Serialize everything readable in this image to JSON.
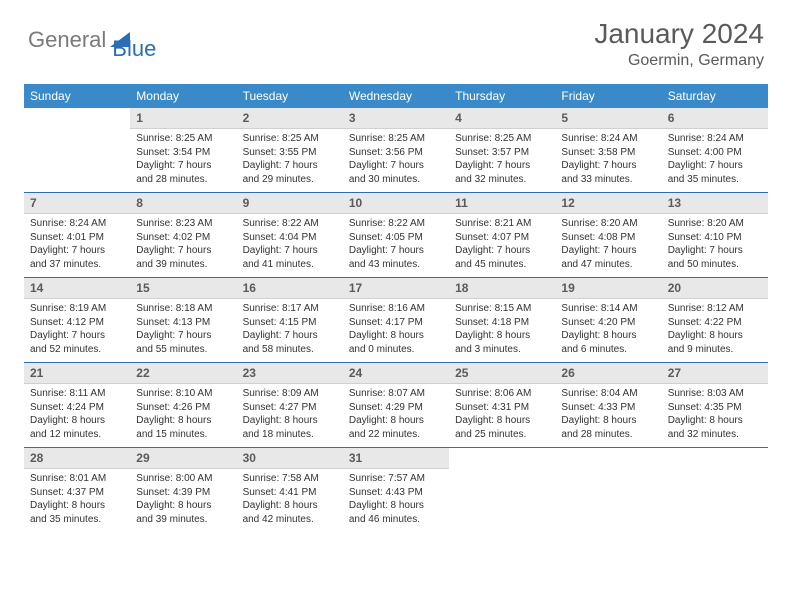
{
  "logo": {
    "text_gray": "General",
    "text_blue": "Blue"
  },
  "title": "January 2024",
  "location": "Goermin, Germany",
  "colors": {
    "header_bg": "#3a8ac9",
    "header_text": "#ffffff",
    "daynum_bg": "#e8e8e8",
    "daynum_text": "#5a5a5a",
    "row_divider": "#2a6fb5",
    "body_text": "#333333",
    "title_text": "#5a5a5a",
    "page_bg": "#ffffff"
  },
  "typography": {
    "title_fontsize": 28,
    "location_fontsize": 16,
    "dayheader_fontsize": 12,
    "daynum_fontsize": 12,
    "body_fontsize": 10,
    "font_family": "Arial"
  },
  "day_headers": [
    "Sunday",
    "Monday",
    "Tuesday",
    "Wednesday",
    "Thursday",
    "Friday",
    "Saturday"
  ],
  "weeks": [
    [
      {
        "n": "",
        "sr": "",
        "ss": "",
        "d1": "",
        "d2": "",
        "empty": true
      },
      {
        "n": "1",
        "sr": "Sunrise: 8:25 AM",
        "ss": "Sunset: 3:54 PM",
        "d1": "Daylight: 7 hours",
        "d2": "and 28 minutes."
      },
      {
        "n": "2",
        "sr": "Sunrise: 8:25 AM",
        "ss": "Sunset: 3:55 PM",
        "d1": "Daylight: 7 hours",
        "d2": "and 29 minutes."
      },
      {
        "n": "3",
        "sr": "Sunrise: 8:25 AM",
        "ss": "Sunset: 3:56 PM",
        "d1": "Daylight: 7 hours",
        "d2": "and 30 minutes."
      },
      {
        "n": "4",
        "sr": "Sunrise: 8:25 AM",
        "ss": "Sunset: 3:57 PM",
        "d1": "Daylight: 7 hours",
        "d2": "and 32 minutes."
      },
      {
        "n": "5",
        "sr": "Sunrise: 8:24 AM",
        "ss": "Sunset: 3:58 PM",
        "d1": "Daylight: 7 hours",
        "d2": "and 33 minutes."
      },
      {
        "n": "6",
        "sr": "Sunrise: 8:24 AM",
        "ss": "Sunset: 4:00 PM",
        "d1": "Daylight: 7 hours",
        "d2": "and 35 minutes."
      }
    ],
    [
      {
        "n": "7",
        "sr": "Sunrise: 8:24 AM",
        "ss": "Sunset: 4:01 PM",
        "d1": "Daylight: 7 hours",
        "d2": "and 37 minutes."
      },
      {
        "n": "8",
        "sr": "Sunrise: 8:23 AM",
        "ss": "Sunset: 4:02 PM",
        "d1": "Daylight: 7 hours",
        "d2": "and 39 minutes."
      },
      {
        "n": "9",
        "sr": "Sunrise: 8:22 AM",
        "ss": "Sunset: 4:04 PM",
        "d1": "Daylight: 7 hours",
        "d2": "and 41 minutes."
      },
      {
        "n": "10",
        "sr": "Sunrise: 8:22 AM",
        "ss": "Sunset: 4:05 PM",
        "d1": "Daylight: 7 hours",
        "d2": "and 43 minutes."
      },
      {
        "n": "11",
        "sr": "Sunrise: 8:21 AM",
        "ss": "Sunset: 4:07 PM",
        "d1": "Daylight: 7 hours",
        "d2": "and 45 minutes."
      },
      {
        "n": "12",
        "sr": "Sunrise: 8:20 AM",
        "ss": "Sunset: 4:08 PM",
        "d1": "Daylight: 7 hours",
        "d2": "and 47 minutes."
      },
      {
        "n": "13",
        "sr": "Sunrise: 8:20 AM",
        "ss": "Sunset: 4:10 PM",
        "d1": "Daylight: 7 hours",
        "d2": "and 50 minutes."
      }
    ],
    [
      {
        "n": "14",
        "sr": "Sunrise: 8:19 AM",
        "ss": "Sunset: 4:12 PM",
        "d1": "Daylight: 7 hours",
        "d2": "and 52 minutes."
      },
      {
        "n": "15",
        "sr": "Sunrise: 8:18 AM",
        "ss": "Sunset: 4:13 PM",
        "d1": "Daylight: 7 hours",
        "d2": "and 55 minutes."
      },
      {
        "n": "16",
        "sr": "Sunrise: 8:17 AM",
        "ss": "Sunset: 4:15 PM",
        "d1": "Daylight: 7 hours",
        "d2": "and 58 minutes."
      },
      {
        "n": "17",
        "sr": "Sunrise: 8:16 AM",
        "ss": "Sunset: 4:17 PM",
        "d1": "Daylight: 8 hours",
        "d2": "and 0 minutes."
      },
      {
        "n": "18",
        "sr": "Sunrise: 8:15 AM",
        "ss": "Sunset: 4:18 PM",
        "d1": "Daylight: 8 hours",
        "d2": "and 3 minutes."
      },
      {
        "n": "19",
        "sr": "Sunrise: 8:14 AM",
        "ss": "Sunset: 4:20 PM",
        "d1": "Daylight: 8 hours",
        "d2": "and 6 minutes."
      },
      {
        "n": "20",
        "sr": "Sunrise: 8:12 AM",
        "ss": "Sunset: 4:22 PM",
        "d1": "Daylight: 8 hours",
        "d2": "and 9 minutes."
      }
    ],
    [
      {
        "n": "21",
        "sr": "Sunrise: 8:11 AM",
        "ss": "Sunset: 4:24 PM",
        "d1": "Daylight: 8 hours",
        "d2": "and 12 minutes."
      },
      {
        "n": "22",
        "sr": "Sunrise: 8:10 AM",
        "ss": "Sunset: 4:26 PM",
        "d1": "Daylight: 8 hours",
        "d2": "and 15 minutes."
      },
      {
        "n": "23",
        "sr": "Sunrise: 8:09 AM",
        "ss": "Sunset: 4:27 PM",
        "d1": "Daylight: 8 hours",
        "d2": "and 18 minutes."
      },
      {
        "n": "24",
        "sr": "Sunrise: 8:07 AM",
        "ss": "Sunset: 4:29 PM",
        "d1": "Daylight: 8 hours",
        "d2": "and 22 minutes."
      },
      {
        "n": "25",
        "sr": "Sunrise: 8:06 AM",
        "ss": "Sunset: 4:31 PM",
        "d1": "Daylight: 8 hours",
        "d2": "and 25 minutes."
      },
      {
        "n": "26",
        "sr": "Sunrise: 8:04 AM",
        "ss": "Sunset: 4:33 PM",
        "d1": "Daylight: 8 hours",
        "d2": "and 28 minutes."
      },
      {
        "n": "27",
        "sr": "Sunrise: 8:03 AM",
        "ss": "Sunset: 4:35 PM",
        "d1": "Daylight: 8 hours",
        "d2": "and 32 minutes."
      }
    ],
    [
      {
        "n": "28",
        "sr": "Sunrise: 8:01 AM",
        "ss": "Sunset: 4:37 PM",
        "d1": "Daylight: 8 hours",
        "d2": "and 35 minutes."
      },
      {
        "n": "29",
        "sr": "Sunrise: 8:00 AM",
        "ss": "Sunset: 4:39 PM",
        "d1": "Daylight: 8 hours",
        "d2": "and 39 minutes."
      },
      {
        "n": "30",
        "sr": "Sunrise: 7:58 AM",
        "ss": "Sunset: 4:41 PM",
        "d1": "Daylight: 8 hours",
        "d2": "and 42 minutes."
      },
      {
        "n": "31",
        "sr": "Sunrise: 7:57 AM",
        "ss": "Sunset: 4:43 PM",
        "d1": "Daylight: 8 hours",
        "d2": "and 46 minutes."
      },
      {
        "n": "",
        "sr": "",
        "ss": "",
        "d1": "",
        "d2": "",
        "empty": true
      },
      {
        "n": "",
        "sr": "",
        "ss": "",
        "d1": "",
        "d2": "",
        "empty": true
      },
      {
        "n": "",
        "sr": "",
        "ss": "",
        "d1": "",
        "d2": "",
        "empty": true
      }
    ]
  ]
}
